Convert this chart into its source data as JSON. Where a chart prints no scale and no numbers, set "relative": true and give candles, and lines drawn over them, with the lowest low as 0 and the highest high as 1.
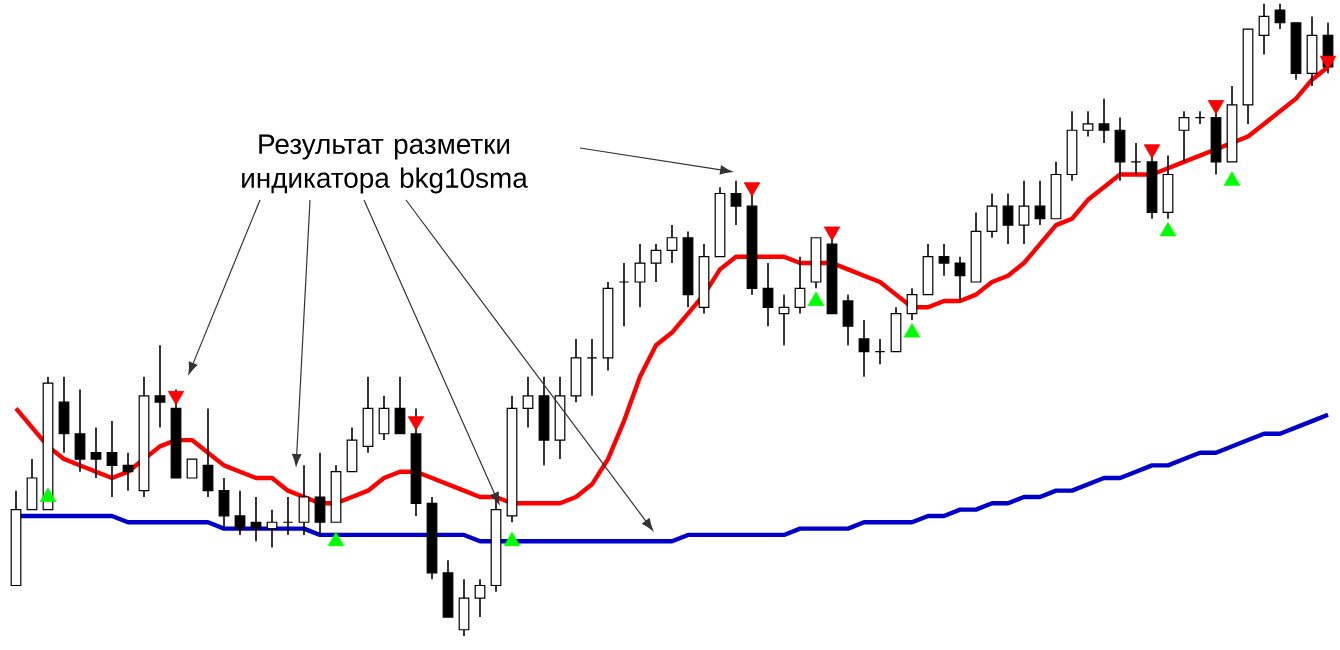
{
  "chart_data": {
    "type": "candlestick",
    "relative": true,
    "categories": [
      null,
      null,
      null,
      null,
      null,
      null,
      null,
      null,
      null,
      null,
      null,
      null,
      null,
      null,
      null,
      null,
      null,
      null,
      null,
      null,
      null,
      null,
      null,
      null,
      null,
      null,
      null,
      null,
      null,
      null,
      null,
      null,
      null,
      null,
      null,
      null,
      null,
      null,
      null,
      null,
      null,
      null,
      null,
      null,
      null,
      null,
      null,
      null,
      null,
      null,
      null,
      null,
      null,
      null,
      null,
      null,
      null,
      null,
      null,
      null,
      null,
      null,
      null,
      null,
      null,
      null,
      null,
      null,
      null,
      null,
      null,
      null,
      null,
      null,
      null,
      null,
      null,
      null,
      null,
      null,
      null,
      null,
      null
    ],
    "ohlc": [
      [
        0.08,
        0.23,
        0.08,
        0.2
      ],
      [
        0.2,
        0.28,
        0.2,
        0.25
      ],
      [
        0.2,
        0.41,
        0.2,
        0.4
      ],
      [
        0.37,
        0.41,
        0.29,
        0.32
      ],
      [
        0.32,
        0.39,
        0.26,
        0.28
      ],
      [
        0.29,
        0.33,
        0.25,
        0.28
      ],
      [
        0.29,
        0.34,
        0.22,
        0.27
      ],
      [
        0.27,
        0.29,
        0.23,
        0.26
      ],
      [
        0.23,
        0.41,
        0.22,
        0.38
      ],
      [
        0.38,
        0.46,
        0.33,
        0.37
      ],
      [
        0.36,
        0.39,
        0.25,
        0.25
      ],
      [
        0.25,
        0.28,
        0.25,
        0.28
      ],
      [
        0.27,
        0.36,
        0.22,
        0.23
      ],
      [
        0.23,
        0.25,
        0.17,
        0.19
      ],
      [
        0.19,
        0.23,
        0.16,
        0.17
      ],
      [
        0.18,
        0.22,
        0.15,
        0.17
      ],
      [
        0.17,
        0.2,
        0.14,
        0.18
      ],
      [
        0.18,
        0.22,
        0.16,
        0.18
      ],
      [
        0.18,
        0.27,
        0.16,
        0.22
      ],
      [
        0.22,
        0.29,
        0.16,
        0.18
      ],
      [
        0.18,
        0.27,
        0.18,
        0.26
      ],
      [
        0.26,
        0.33,
        0.26,
        0.31
      ],
      [
        0.3,
        0.41,
        0.29,
        0.36
      ],
      [
        0.32,
        0.38,
        0.31,
        0.36
      ],
      [
        0.36,
        0.41,
        0.32,
        0.32
      ],
      [
        0.32,
        0.36,
        0.19,
        0.21
      ],
      [
        0.21,
        0.22,
        0.09,
        0.1
      ],
      [
        0.1,
        0.12,
        0.03,
        0.03
      ],
      [
        0.01,
        0.09,
        0,
        0.06
      ],
      [
        0.06,
        0.09,
        0.03,
        0.08
      ],
      [
        0.08,
        0.22,
        0.07,
        0.2
      ],
      [
        0.19,
        0.38,
        0.18,
        0.36
      ],
      [
        0.36,
        0.41,
        0.33,
        0.38
      ],
      [
        0.38,
        0.41,
        0.27,
        0.31
      ],
      [
        0.31,
        0.41,
        0.28,
        0.38
      ],
      [
        0.38,
        0.47,
        0.37,
        0.44
      ],
      [
        0.44,
        0.47,
        0.38,
        0.44
      ],
      [
        0.44,
        0.56,
        0.42,
        0.55
      ],
      [
        0.56,
        0.59,
        0.49,
        0.56
      ],
      [
        0.56,
        0.62,
        0.52,
        0.59
      ],
      [
        0.59,
        0.62,
        0.56,
        0.61
      ],
      [
        0.61,
        0.65,
        0.59,
        0.63
      ],
      [
        0.63,
        0.64,
        0.52,
        0.54
      ],
      [
        0.52,
        0.62,
        0.51,
        0.6
      ],
      [
        0.6,
        0.71,
        0.6,
        0.7
      ],
      [
        0.7,
        0.72,
        0.65,
        0.68
      ],
      [
        0.68,
        0.7,
        0.54,
        0.55
      ],
      [
        0.55,
        0.59,
        0.49,
        0.52
      ],
      [
        0.51,
        0.54,
        0.46,
        0.52
      ],
      [
        0.52,
        0.6,
        0.51,
        0.55
      ],
      [
        0.56,
        0.63,
        0.55,
        0.63
      ],
      [
        0.62,
        0.63,
        0.51,
        0.51
      ],
      [
        0.53,
        0.54,
        0.46,
        0.49
      ],
      [
        0.47,
        0.5,
        0.41,
        0.45
      ],
      [
        0.45,
        0.47,
        0.43,
        0.45
      ],
      [
        0.45,
        0.52,
        0.45,
        0.51
      ],
      [
        0.51,
        0.55,
        0.5,
        0.54
      ],
      [
        0.54,
        0.62,
        0.54,
        0.6
      ],
      [
        0.6,
        0.62,
        0.57,
        0.59
      ],
      [
        0.59,
        0.6,
        0.53,
        0.57
      ],
      [
        0.56,
        0.67,
        0.56,
        0.64
      ],
      [
        0.64,
        0.7,
        0.63,
        0.68
      ],
      [
        0.68,
        0.7,
        0.62,
        0.65
      ],
      [
        0.65,
        0.72,
        0.62,
        0.68
      ],
      [
        0.68,
        0.72,
        0.65,
        0.66
      ],
      [
        0.66,
        0.75,
        0.66,
        0.73
      ],
      [
        0.73,
        0.83,
        0.72,
        0.8
      ],
      [
        0.8,
        0.83,
        0.79,
        0.81
      ],
      [
        0.81,
        0.85,
        0.78,
        0.8
      ],
      [
        0.8,
        0.82,
        0.72,
        0.75
      ],
      [
        0.75,
        0.78,
        0.73,
        0.75
      ],
      [
        0.75,
        0.76,
        0.66,
        0.67
      ],
      [
        0.67,
        0.76,
        0.66,
        0.73
      ],
      [
        0.8,
        0.83,
        0.75,
        0.82
      ],
      [
        0.82,
        0.83,
        0.81,
        0.82
      ],
      [
        0.82,
        0.83,
        0.73,
        0.75
      ],
      [
        0.75,
        0.87,
        0.75,
        0.84
      ],
      [
        0.84,
        0.96,
        0.81,
        0.96
      ],
      [
        0.95,
        1,
        0.92,
        0.98
      ],
      [
        0.99,
        1,
        0.96,
        0.97
      ],
      [
        0.97,
        0.97,
        0.88,
        0.89
      ],
      [
        0.89,
        0.98,
        0.87,
        0.95
      ],
      [
        0.95,
        0.97,
        0.89,
        0.9
      ]
    ],
    "series": [
      {
        "type": "line",
        "color": "#ff0000",
        "values": [
          0.36,
          0.33,
          0.3,
          0.28,
          0.27,
          0.26,
          0.25,
          0.26,
          0.28,
          0.3,
          0.31,
          0.31,
          0.29,
          0.27,
          0.26,
          0.25,
          0.25,
          0.23,
          0.22,
          0.21,
          0.21,
          0.22,
          0.23,
          0.25,
          0.26,
          0.26,
          0.25,
          0.24,
          0.23,
          0.22,
          0.22,
          0.21,
          0.21,
          0.21,
          0.21,
          0.22,
          0.24,
          0.28,
          0.34,
          0.41,
          0.46,
          0.48,
          0.51,
          0.54,
          0.58,
          0.6,
          0.6,
          0.6,
          0.6,
          0.59,
          0.59,
          0.59,
          0.58,
          0.57,
          0.56,
          0.54,
          0.52,
          0.52,
          0.53,
          0.53,
          0.54,
          0.56,
          0.57,
          0.59,
          0.62,
          0.65,
          0.66,
          0.69,
          0.71,
          0.73,
          0.73,
          0.73,
          0.74,
          0.75,
          0.76,
          0.77,
          0.78,
          0.79,
          0.81,
          0.83,
          0.85,
          0.88,
          0.9
        ]
      },
      {
        "type": "line",
        "color": "#0000c8",
        "values": [
          0.19,
          0.19,
          0.19,
          0.19,
          0.19,
          0.19,
          0.19,
          0.18,
          0.18,
          0.18,
          0.18,
          0.18,
          0.18,
          0.17,
          0.17,
          0.17,
          0.17,
          0.17,
          0.17,
          0.16,
          0.16,
          0.16,
          0.16,
          0.16,
          0.16,
          0.16,
          0.16,
          0.16,
          0.16,
          0.15,
          0.15,
          0.15,
          0.15,
          0.15,
          0.15,
          0.15,
          0.15,
          0.15,
          0.15,
          0.15,
          0.15,
          0.15,
          0.16,
          0.16,
          0.16,
          0.16,
          0.16,
          0.16,
          0.16,
          0.17,
          0.17,
          0.17,
          0.17,
          0.18,
          0.18,
          0.18,
          0.18,
          0.19,
          0.19,
          0.2,
          0.2,
          0.21,
          0.21,
          0.22,
          0.22,
          0.23,
          0.23,
          0.24,
          0.25,
          0.25,
          0.26,
          0.27,
          0.27,
          0.28,
          0.29,
          0.29,
          0.3,
          0.31,
          0.32,
          0.32,
          0.33,
          0.34,
          0.35
        ]
      },
      {
        "type": "scatter",
        "color": "#ff0000",
        "marker": "triangle",
        "values": [
          null,
          null,
          null,
          null,
          null,
          null,
          null,
          null,
          null,
          null,
          0.38,
          null,
          null,
          null,
          null,
          null,
          null,
          null,
          null,
          null,
          null,
          null,
          null,
          null,
          null,
          0.34,
          null,
          null,
          null,
          null,
          null,
          null,
          null,
          null,
          null,
          null,
          null,
          null,
          null,
          null,
          null,
          null,
          null,
          null,
          null,
          null,
          0.71,
          null,
          null,
          null,
          null,
          0.64,
          null,
          null,
          null,
          null,
          null,
          null,
          null,
          null,
          null,
          null,
          null,
          null,
          null,
          null,
          null,
          null,
          null,
          null,
          null,
          0.77,
          null,
          null,
          null,
          0.84,
          null,
          null,
          null,
          null,
          null,
          null,
          0.91
        ]
      },
      {
        "type": "scatter",
        "color": "#00ff00",
        "marker": "triangle",
        "values": [
          null,
          null,
          0.22,
          null,
          null,
          null,
          null,
          null,
          null,
          null,
          null,
          null,
          null,
          null,
          null,
          null,
          null,
          null,
          null,
          null,
          0.15,
          null,
          null,
          null,
          null,
          null,
          null,
          null,
          null,
          null,
          null,
          0.15,
          null,
          null,
          null,
          null,
          null,
          null,
          null,
          null,
          null,
          null,
          null,
          null,
          null,
          null,
          null,
          null,
          null,
          null,
          0.53,
          null,
          null,
          null,
          null,
          null,
          0.48,
          null,
          null,
          null,
          null,
          null,
          null,
          null,
          null,
          null,
          null,
          null,
          null,
          null,
          null,
          null,
          0.64,
          null,
          null,
          null,
          0.72,
          null,
          null,
          null,
          null,
          null,
          null
        ]
      }
    ],
    "annotations": [
      "Результат разметки индикатора bkg10sma"
    ]
  }
}
